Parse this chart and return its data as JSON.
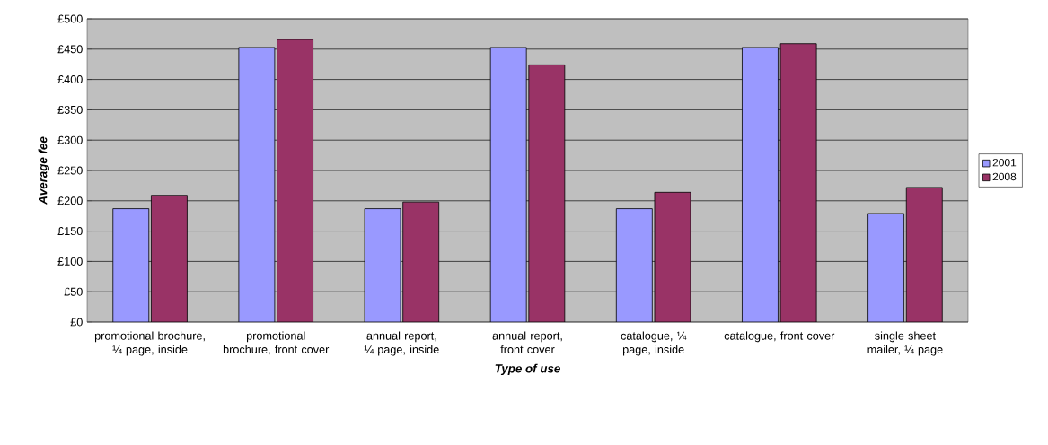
{
  "chart_data": {
    "type": "bar",
    "xlabel": "Type of use",
    "ylabel": "Average fee",
    "categories": [
      "promotional brochure, ¼ page, inside",
      "promotional brochure, front cover",
      "annual report, ¼ page, inside",
      "annual report, front cover",
      "catalogue, ¼ page, inside",
      "catalogue, front cover",
      "single sheet mailer, ¼ page"
    ],
    "series": [
      {
        "name": "2001",
        "color": "#9999ff",
        "values": [
          187,
          453,
          187,
          453,
          187,
          453,
          179
        ]
      },
      {
        "name": "2008",
        "color": "#993366",
        "values": [
          209,
          466,
          198,
          424,
          214,
          459,
          222
        ]
      }
    ],
    "ylim": [
      0,
      500
    ],
    "yticks": [
      {
        "value": 0,
        "label": "£0"
      },
      {
        "value": 50,
        "label": "£50"
      },
      {
        "value": 100,
        "label": "£100"
      },
      {
        "value": 150,
        "label": "£150"
      },
      {
        "value": 200,
        "label": "£200"
      },
      {
        "value": 250,
        "label": "£250"
      },
      {
        "value": 300,
        "label": "£300"
      },
      {
        "value": 350,
        "label": "£350"
      },
      {
        "value": 400,
        "label": "£400"
      },
      {
        "value": 450,
        "label": "£450"
      },
      {
        "value": 500,
        "label": "£500"
      }
    ],
    "grid": "y",
    "legend": "right"
  }
}
